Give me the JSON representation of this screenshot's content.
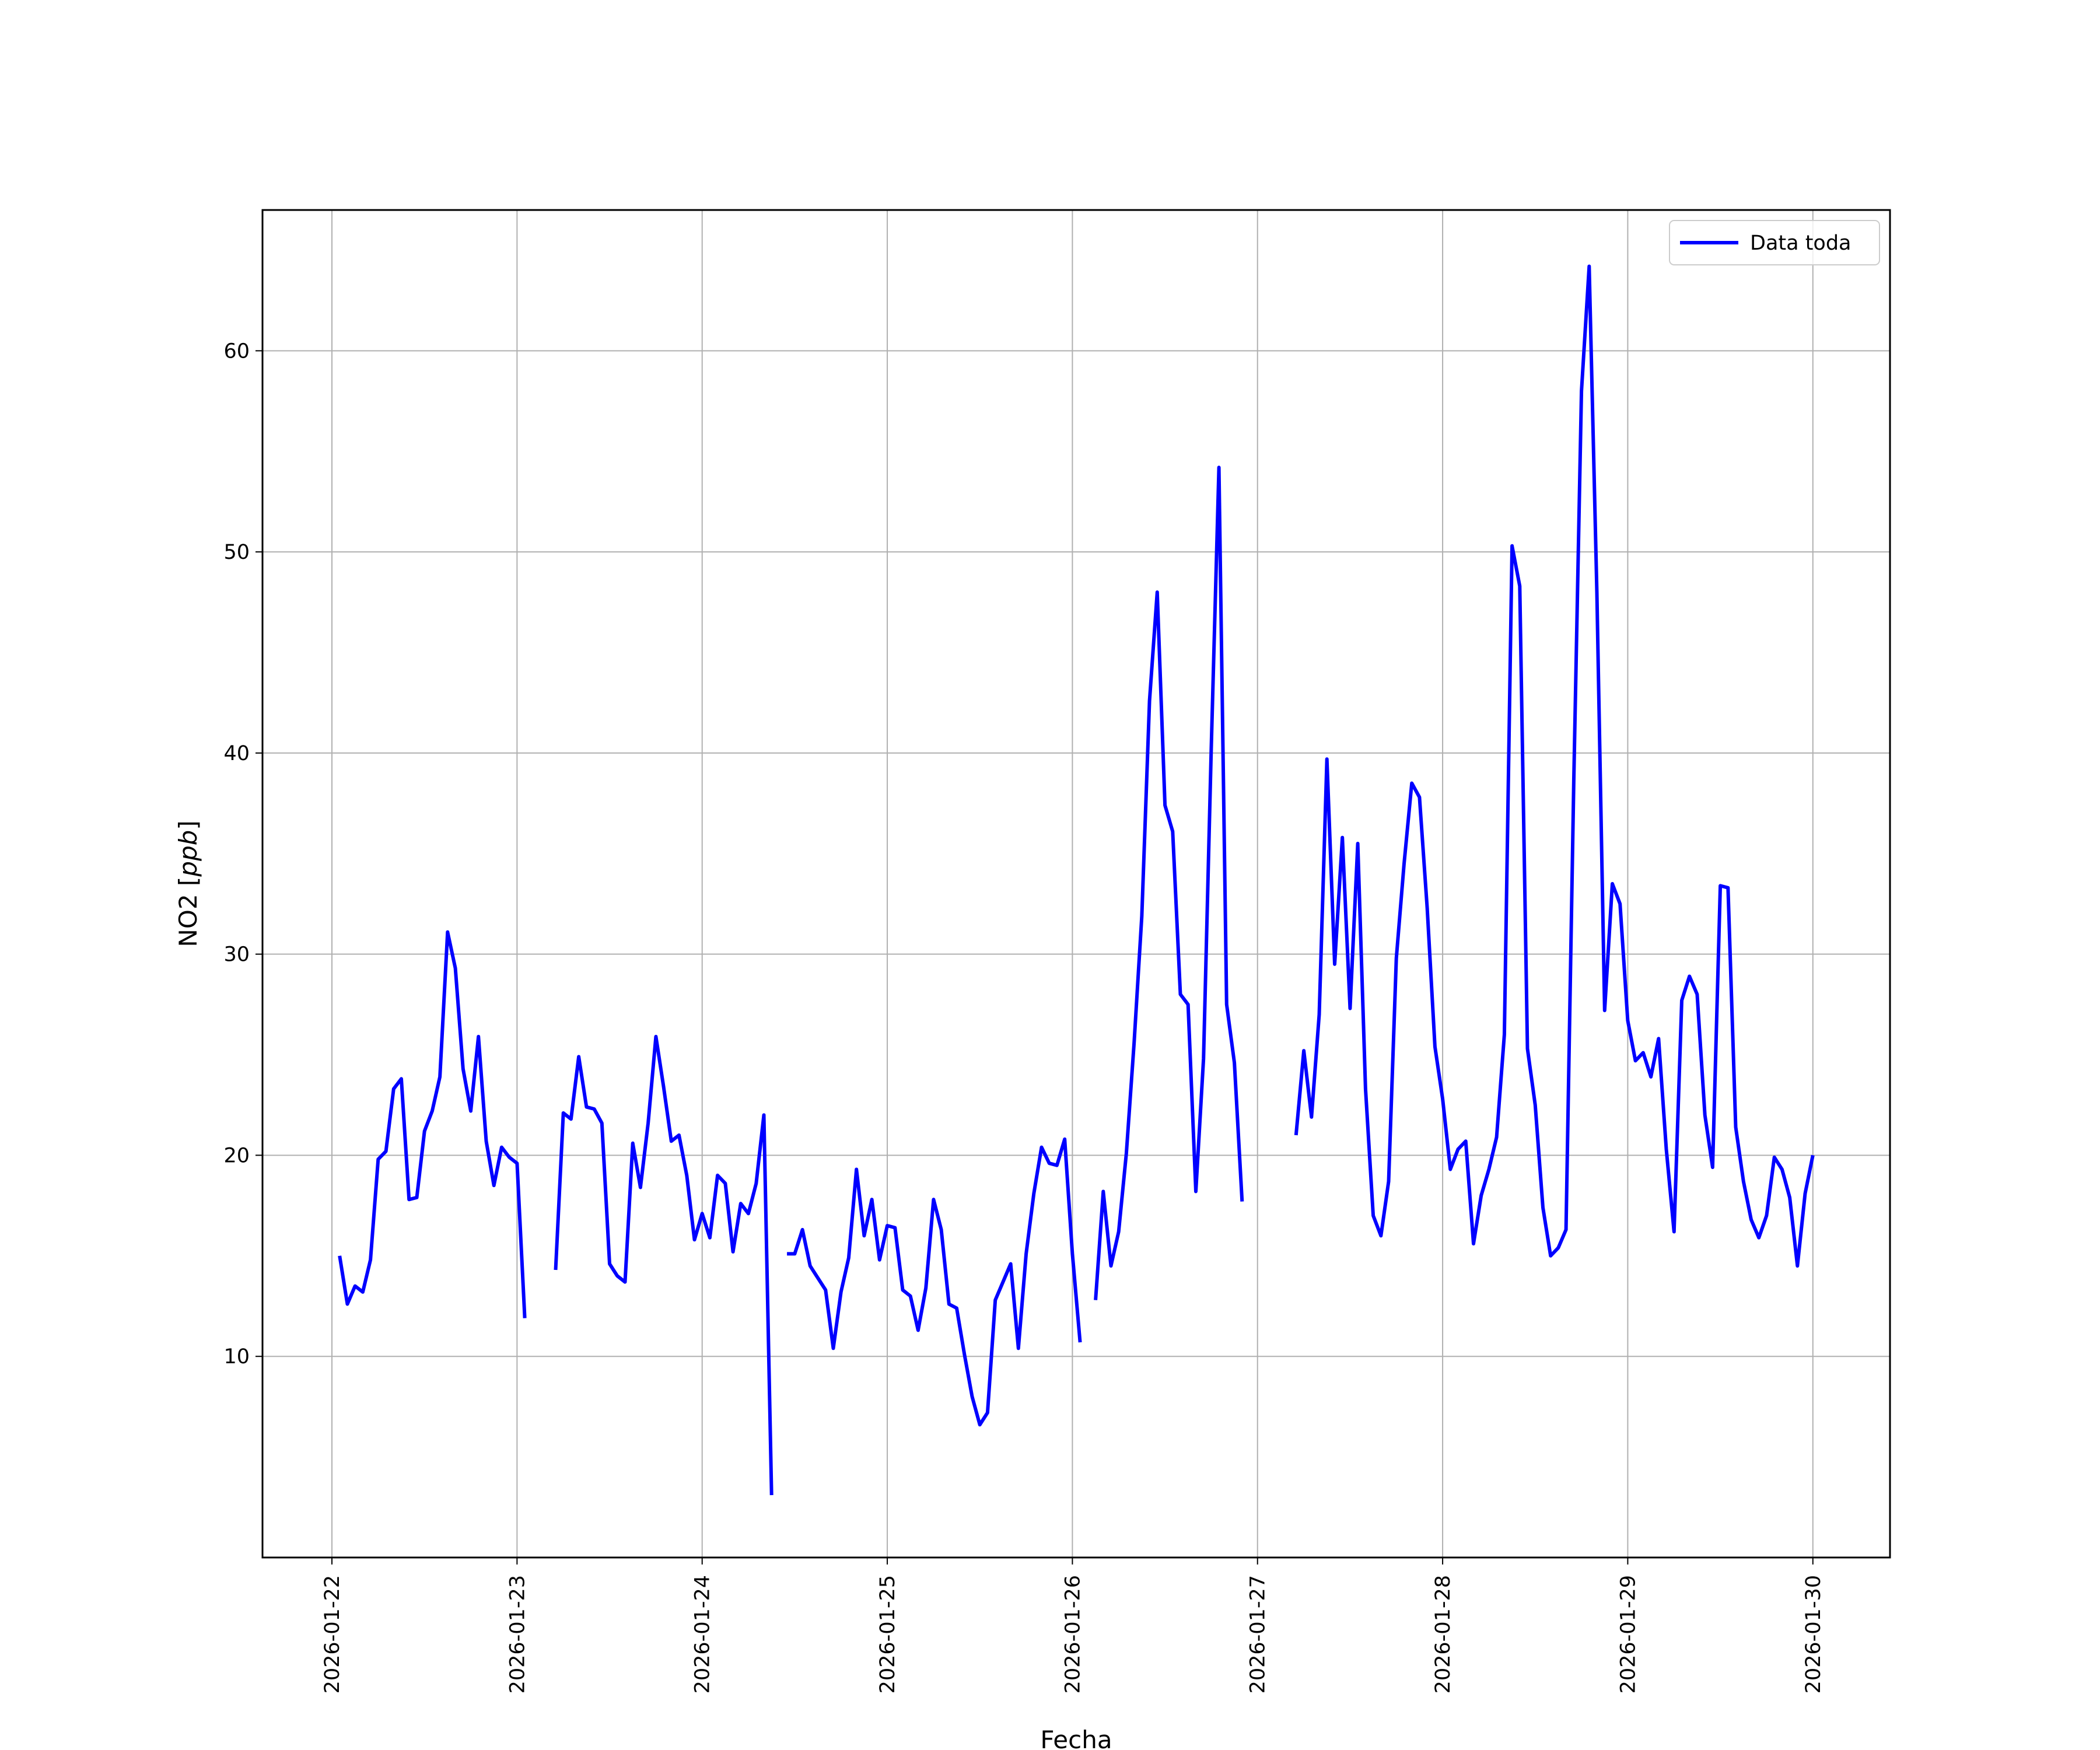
{
  "chart_data": {
    "type": "line",
    "xlabel": "Fecha",
    "ylabel": "NO2 [ppb]",
    "ylabel_main": "NO2 ",
    "ylabel_unit": "ppb",
    "x_ticks": [
      "2026-01-22",
      "2026-01-23",
      "2026-01-24",
      "2026-01-25",
      "2026-01-26",
      "2026-01-27",
      "2026-01-28",
      "2026-01-29",
      "2026-01-30"
    ],
    "y_ticks": [
      "10",
      "20",
      "30",
      "40",
      "50",
      "60"
    ],
    "xlim": [
      "2026-01-21T15:00",
      "2026-01-30T10:00"
    ],
    "ylim": [
      0,
      67
    ],
    "grid": true,
    "legend": {
      "position": "top-right",
      "entries": [
        "Data toda"
      ]
    },
    "series": [
      {
        "name": "Data toda",
        "color": "#0000ff",
        "segments": [
          [
            [
              "2026-01-22T01:00",
              15.0
            ],
            [
              "2026-01-22T02:00",
              12.6
            ],
            [
              "2026-01-22T03:00",
              13.5
            ],
            [
              "2026-01-22T04:00",
              13.2
            ],
            [
              "2026-01-22T05:00",
              14.8
            ],
            [
              "2026-01-22T06:00",
              19.8
            ],
            [
              "2026-01-22T07:00",
              20.2
            ],
            [
              "2026-01-22T08:00",
              23.3
            ],
            [
              "2026-01-22T09:00",
              23.8
            ],
            [
              "2026-01-22T10:00",
              17.8
            ],
            [
              "2026-01-22T11:00",
              17.9
            ],
            [
              "2026-01-22T12:00",
              21.2
            ],
            [
              "2026-01-22T13:00",
              22.2
            ],
            [
              "2026-01-22T14:00",
              23.9
            ],
            [
              "2026-01-22T15:00",
              31.1
            ],
            [
              "2026-01-22T16:00",
              29.3
            ],
            [
              "2026-01-22T17:00",
              24.3
            ],
            [
              "2026-01-22T18:00",
              22.2
            ],
            [
              "2026-01-22T19:00",
              25.9
            ],
            [
              "2026-01-22T20:00",
              20.7
            ],
            [
              "2026-01-22T21:00",
              18.5
            ],
            [
              "2026-01-22T22:00",
              20.4
            ],
            [
              "2026-01-22T23:00",
              19.9
            ],
            [
              "2026-01-23T00:00",
              19.6
            ],
            [
              "2026-01-23T01:00",
              11.9
            ]
          ],
          [
            [
              "2026-01-23T05:00",
              14.3
            ],
            [
              "2026-01-23T06:00",
              22.1
            ],
            [
              "2026-01-23T07:00",
              21.8
            ],
            [
              "2026-01-23T08:00",
              24.9
            ],
            [
              "2026-01-23T09:00",
              22.4
            ],
            [
              "2026-01-23T10:00",
              22.3
            ],
            [
              "2026-01-23T11:00",
              21.6
            ],
            [
              "2026-01-23T12:00",
              14.6
            ],
            [
              "2026-01-23T13:00",
              14.0
            ],
            [
              "2026-01-23T14:00",
              13.7
            ],
            [
              "2026-01-23T15:00",
              20.6
            ],
            [
              "2026-01-23T16:00",
              18.4
            ],
            [
              "2026-01-23T17:00",
              21.6
            ],
            [
              "2026-01-23T18:00",
              25.9
            ],
            [
              "2026-01-23T19:00",
              23.4
            ],
            [
              "2026-01-23T20:00",
              20.7
            ],
            [
              "2026-01-23T21:00",
              21.0
            ],
            [
              "2026-01-23T22:00",
              19.0
            ],
            [
              "2026-01-23T23:00",
              15.8
            ],
            [
              "2026-01-24T00:00",
              17.1
            ],
            [
              "2026-01-24T01:00",
              15.9
            ],
            [
              "2026-01-24T02:00",
              19.0
            ],
            [
              "2026-01-24T03:00",
              18.6
            ],
            [
              "2026-01-24T04:00",
              15.2
            ],
            [
              "2026-01-24T05:00",
              17.6
            ],
            [
              "2026-01-24T06:00",
              17.1
            ],
            [
              "2026-01-24T07:00",
              18.6
            ],
            [
              "2026-01-24T08:00",
              22.0
            ],
            [
              "2026-01-24T09:00",
              3.1
            ]
          ],
          [
            [
              "2026-01-24T11:00",
              15.1
            ],
            [
              "2026-01-24T12:00",
              15.1
            ],
            [
              "2026-01-24T13:00",
              16.3
            ],
            [
              "2026-01-24T14:00",
              14.5
            ],
            [
              "2026-01-24T15:00",
              13.9
            ],
            [
              "2026-01-24T16:00",
              13.3
            ],
            [
              "2026-01-24T17:00",
              10.4
            ],
            [
              "2026-01-24T18:00",
              13.2
            ],
            [
              "2026-01-24T19:00",
              14.9
            ],
            [
              "2026-01-24T20:00",
              19.3
            ],
            [
              "2026-01-24T21:00",
              16.0
            ],
            [
              "2026-01-24T22:00",
              17.8
            ],
            [
              "2026-01-24T23:00",
              14.8
            ],
            [
              "2026-01-25T00:00",
              16.5
            ],
            [
              "2026-01-25T01:00",
              16.4
            ],
            [
              "2026-01-25T02:00",
              13.3
            ],
            [
              "2026-01-25T03:00",
              13.0
            ],
            [
              "2026-01-25T04:00",
              11.3
            ],
            [
              "2026-01-25T05:00",
              13.4
            ],
            [
              "2026-01-25T06:00",
              17.8
            ],
            [
              "2026-01-25T07:00",
              16.3
            ],
            [
              "2026-01-25T08:00",
              12.6
            ],
            [
              "2026-01-25T09:00",
              12.4
            ],
            [
              "2026-01-25T10:00",
              10.1
            ],
            [
              "2026-01-25T11:00",
              8.0
            ],
            [
              "2026-01-25T12:00",
              6.6
            ],
            [
              "2026-01-25T13:00",
              7.2
            ],
            [
              "2026-01-25T14:00",
              12.8
            ],
            [
              "2026-01-25T15:00",
              13.7
            ],
            [
              "2026-01-25T16:00",
              14.6
            ],
            [
              "2026-01-25T17:00",
              10.4
            ],
            [
              "2026-01-25T18:00",
              15.1
            ],
            [
              "2026-01-25T19:00",
              18.1
            ],
            [
              "2026-01-25T20:00",
              20.4
            ],
            [
              "2026-01-25T21:00",
              19.6
            ],
            [
              "2026-01-25T22:00",
              19.5
            ],
            [
              "2026-01-25T23:00",
              20.8
            ],
            [
              "2026-01-26T00:00",
              15.1
            ],
            [
              "2026-01-26T01:00",
              10.7
            ]
          ],
          [
            [
              "2026-01-26T03:00",
              12.8
            ],
            [
              "2026-01-26T04:00",
              18.2
            ],
            [
              "2026-01-26T05:00",
              14.5
            ],
            [
              "2026-01-26T06:00",
              16.2
            ],
            [
              "2026-01-26T07:00",
              20.1
            ],
            [
              "2026-01-26T08:00",
              25.6
            ],
            [
              "2026-01-26T09:00",
              31.9
            ],
            [
              "2026-01-26T10:00",
              42.6
            ],
            [
              "2026-01-26T11:00",
              48.0
            ],
            [
              "2026-01-26T12:00",
              37.4
            ],
            [
              "2026-01-26T13:00",
              36.1
            ],
            [
              "2026-01-26T14:00",
              28.0
            ],
            [
              "2026-01-26T15:00",
              27.5
            ],
            [
              "2026-01-26T16:00",
              18.2
            ],
            [
              "2026-01-26T17:00",
              24.8
            ],
            [
              "2026-01-26T18:00",
              40.2
            ],
            [
              "2026-01-26T19:00",
              54.2
            ],
            [
              "2026-01-26T20:00",
              27.5
            ],
            [
              "2026-01-26T21:00",
              24.6
            ],
            [
              "2026-01-26T22:00",
              17.7
            ]
          ],
          [
            [
              "2026-01-27T05:00",
              21.0
            ],
            [
              "2026-01-27T06:00",
              25.2
            ],
            [
              "2026-01-27T07:00",
              21.9
            ],
            [
              "2026-01-27T08:00",
              27.0
            ],
            [
              "2026-01-27T09:00",
              39.7
            ],
            [
              "2026-01-27T10:00",
              29.5
            ],
            [
              "2026-01-27T11:00",
              35.8
            ],
            [
              "2026-01-27T12:00",
              27.3
            ],
            [
              "2026-01-27T13:00",
              35.5
            ],
            [
              "2026-01-27T14:00",
              23.3
            ],
            [
              "2026-01-27T15:00",
              17.0
            ],
            [
              "2026-01-27T16:00",
              16.0
            ],
            [
              "2026-01-27T17:00",
              18.7
            ],
            [
              "2026-01-27T18:00",
              29.8
            ],
            [
              "2026-01-27T19:00",
              34.5
            ],
            [
              "2026-01-27T20:00",
              38.5
            ],
            [
              "2026-01-27T21:00",
              37.8
            ],
            [
              "2026-01-27T22:00",
              32.3
            ],
            [
              "2026-01-27T23:00",
              25.4
            ],
            [
              "2026-01-28T00:00",
              22.8
            ],
            [
              "2026-01-28T01:00",
              19.3
            ],
            [
              "2026-01-28T02:00",
              20.3
            ],
            [
              "2026-01-28T03:00",
              20.7
            ],
            [
              "2026-01-28T04:00",
              15.6
            ],
            [
              "2026-01-28T05:00",
              18.0
            ],
            [
              "2026-01-28T06:00",
              19.3
            ],
            [
              "2026-01-28T07:00",
              20.9
            ],
            [
              "2026-01-28T08:00",
              26.0
            ],
            [
              "2026-01-28T09:00",
              50.3
            ],
            [
              "2026-01-28T10:00",
              48.3
            ],
            [
              "2026-01-28T11:00",
              25.3
            ],
            [
              "2026-01-28T12:00",
              22.5
            ],
            [
              "2026-01-28T13:00",
              17.4
            ],
            [
              "2026-01-28T14:00",
              15.0
            ],
            [
              "2026-01-28T15:00",
              15.4
            ],
            [
              "2026-01-28T16:00",
              16.3
            ],
            [
              "2026-01-28T17:00",
              38.6
            ],
            [
              "2026-01-28T18:00",
              58.0
            ],
            [
              "2026-01-28T19:00",
              64.2
            ],
            [
              "2026-01-28T20:00",
              48.0
            ],
            [
              "2026-01-28T21:00",
              27.2
            ],
            [
              "2026-01-28T22:00",
              33.5
            ],
            [
              "2026-01-28T23:00",
              32.5
            ],
            [
              "2026-01-29T00:00",
              26.7
            ],
            [
              "2026-01-29T01:00",
              24.7
            ],
            [
              "2026-01-29T02:00",
              25.1
            ],
            [
              "2026-01-29T03:00",
              23.9
            ],
            [
              "2026-01-29T04:00",
              25.8
            ],
            [
              "2026-01-29T05:00",
              20.3
            ],
            [
              "2026-01-29T06:00",
              16.2
            ],
            [
              "2026-01-29T07:00",
              27.7
            ],
            [
              "2026-01-29T08:00",
              28.9
            ],
            [
              "2026-01-29T09:00",
              28.0
            ],
            [
              "2026-01-29T10:00",
              22.0
            ],
            [
              "2026-01-29T11:00",
              19.4
            ],
            [
              "2026-01-29T12:00",
              33.4
            ],
            [
              "2026-01-29T13:00",
              33.3
            ],
            [
              "2026-01-29T14:00",
              21.4
            ],
            [
              "2026-01-29T15:00",
              18.7
            ],
            [
              "2026-01-29T16:00",
              16.8
            ],
            [
              "2026-01-29T17:00",
              15.9
            ],
            [
              "2026-01-29T18:00",
              17.0
            ],
            [
              "2026-01-29T19:00",
              19.9
            ],
            [
              "2026-01-29T20:00",
              19.3
            ],
            [
              "2026-01-29T21:00",
              17.9
            ],
            [
              "2026-01-29T22:00",
              14.5
            ],
            [
              "2026-01-29T23:00",
              18.1
            ],
            [
              "2026-01-30T00:00",
              20.0
            ]
          ]
        ]
      }
    ]
  }
}
